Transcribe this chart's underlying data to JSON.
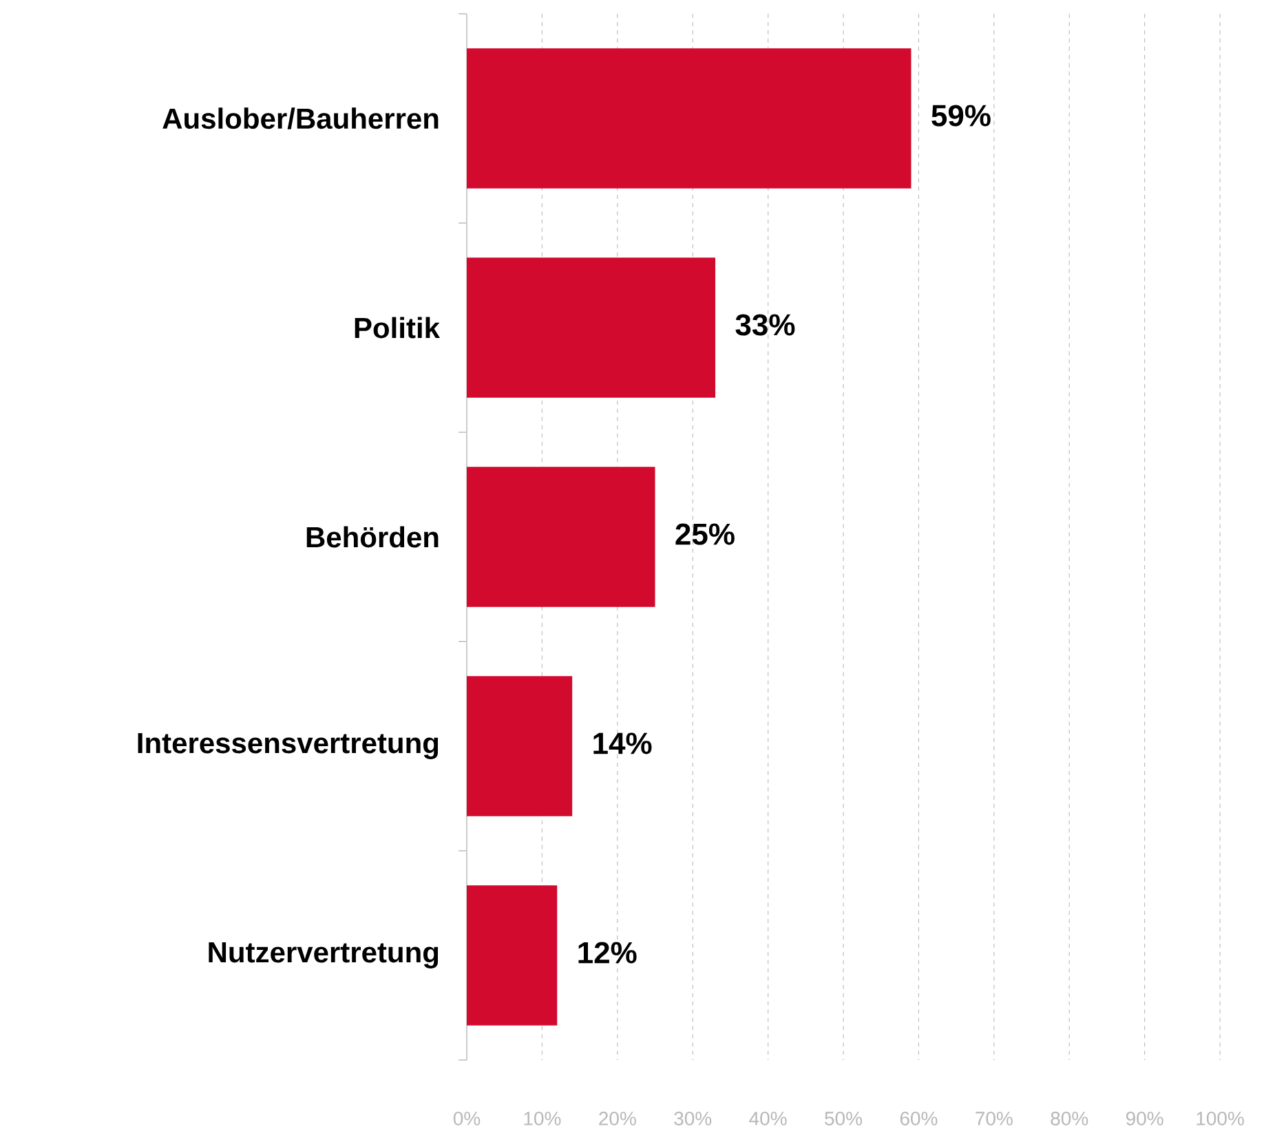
{
  "chart_data": {
    "type": "bar",
    "orientation": "horizontal",
    "categories": [
      "Auslober/Bauherren",
      "Politik",
      "Behörden",
      "Interessensvertretung",
      "Nutzervertretung"
    ],
    "values": [
      59,
      33,
      25,
      14,
      12
    ],
    "value_labels": [
      "59%",
      "33%",
      "25%",
      "14%",
      "12%"
    ],
    "color": "#d20a2e",
    "xlim": [
      0,
      100
    ],
    "xticks": [
      {
        "value": 0,
        "label": "0%"
      },
      {
        "value": 10,
        "label": "10%"
      },
      {
        "value": 20,
        "label": "20%"
      },
      {
        "value": 30,
        "label": "30%"
      },
      {
        "value": 40,
        "label": "40%"
      },
      {
        "value": 50,
        "label": "50%"
      },
      {
        "value": 60,
        "label": "60%"
      },
      {
        "value": 70,
        "label": "70%"
      },
      {
        "value": 80,
        "label": "80%"
      },
      {
        "value": 90,
        "label": "90%"
      },
      {
        "value": 100,
        "label": "100%"
      }
    ],
    "grid": "x"
  }
}
